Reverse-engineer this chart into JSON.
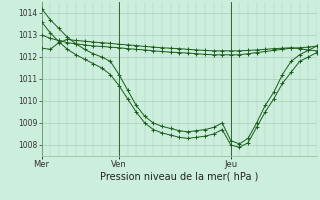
{
  "bg_color": "#cceedd",
  "grid_color_major": "#aaccbb",
  "grid_color_minor": "#bbddcc",
  "line_color": "#1a5c1a",
  "ylim": [
    1007.5,
    1014.5
  ],
  "yticks": [
    1008,
    1009,
    1010,
    1011,
    1012,
    1013,
    1014
  ],
  "xlabel": "Pression niveau de la mer( hPa )",
  "xtick_labels": [
    "Mer",
    "Ven",
    "Jeu"
  ],
  "xtick_positions": [
    0,
    9,
    22
  ],
  "vline_positions": [
    0,
    9,
    22
  ],
  "num_points": 33,
  "series": [
    [
      1014.2,
      1013.7,
      1013.3,
      1012.9,
      1012.6,
      1012.35,
      1012.15,
      1012.0,
      1011.8,
      1011.2,
      1010.5,
      1009.8,
      1009.3,
      1009.0,
      1008.85,
      1008.75,
      1008.65,
      1008.6,
      1008.65,
      1008.7,
      1008.8,
      1009.0,
      1008.2,
      1008.05,
      1008.3,
      1009.0,
      1009.8,
      1010.4,
      1011.2,
      1011.8,
      1012.1,
      1012.3,
      1012.5
    ],
    [
      1013.6,
      1013.1,
      1012.7,
      1012.35,
      1012.1,
      1011.9,
      1011.7,
      1011.5,
      1011.2,
      1010.7,
      1010.1,
      1009.5,
      1009.0,
      1008.7,
      1008.55,
      1008.45,
      1008.35,
      1008.3,
      1008.35,
      1008.4,
      1008.5,
      1008.7,
      1008.0,
      1007.9,
      1008.1,
      1008.8,
      1009.5,
      1010.1,
      1010.8,
      1011.3,
      1011.8,
      1012.0,
      1012.2
    ],
    [
      1013.0,
      1012.85,
      1012.75,
      1012.65,
      1012.6,
      1012.55,
      1012.5,
      1012.48,
      1012.45,
      1012.42,
      1012.38,
      1012.35,
      1012.32,
      1012.28,
      1012.25,
      1012.22,
      1012.2,
      1012.18,
      1012.15,
      1012.12,
      1012.1,
      1012.1,
      1012.1,
      1012.1,
      1012.15,
      1012.2,
      1012.25,
      1012.3,
      1012.35,
      1012.4,
      1012.42,
      1012.45,
      1012.5
    ],
    [
      1012.4,
      1012.35,
      1012.65,
      1012.8,
      1012.75,
      1012.72,
      1012.68,
      1012.65,
      1012.62,
      1012.58,
      1012.55,
      1012.52,
      1012.48,
      1012.45,
      1012.42,
      1012.4,
      1012.38,
      1012.35,
      1012.32,
      1012.3,
      1012.28,
      1012.28,
      1012.28,
      1012.28,
      1012.3,
      1012.32,
      1012.35,
      1012.38,
      1012.4,
      1012.42,
      1012.38,
      1012.32,
      1012.28
    ]
  ]
}
